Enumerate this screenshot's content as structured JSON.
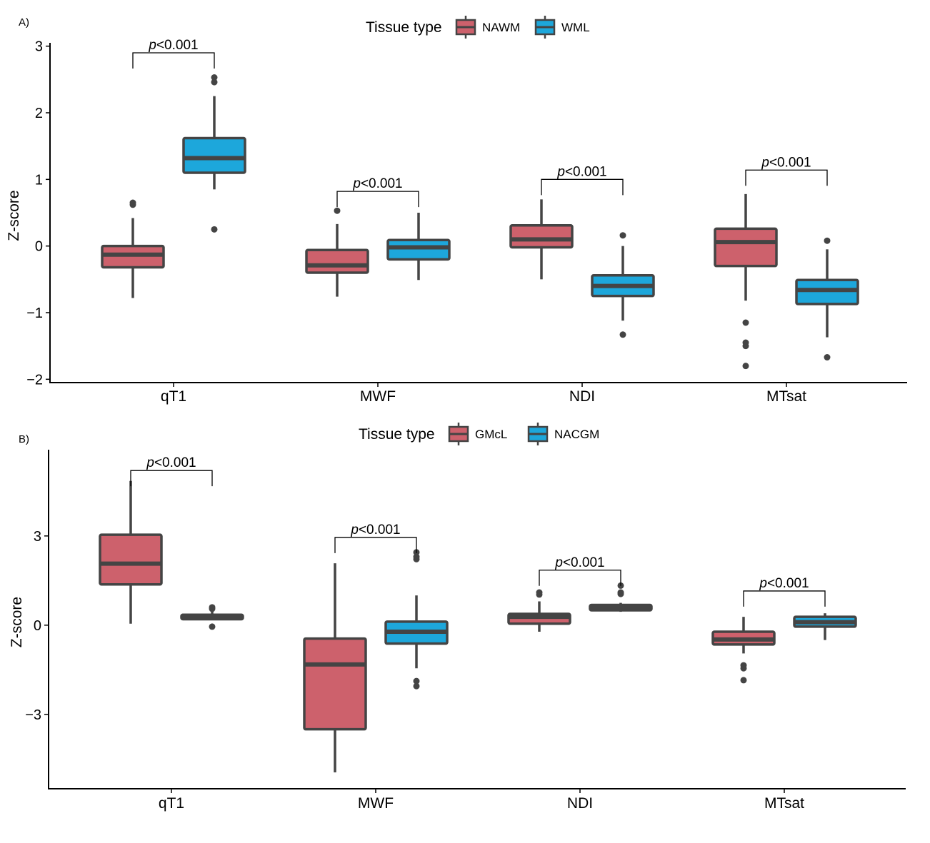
{
  "colors": {
    "box_a": "#CD616C",
    "box_b": "#1DA7DB",
    "box_stroke": "#444444"
  },
  "chart_data": [
    {
      "type": "box",
      "panel_label": "A)",
      "ylabel": "Z-score",
      "ylim": [
        -2.05,
        3.05
      ],
      "yticks": [
        3,
        2,
        1,
        0,
        -1,
        -2
      ],
      "ytick_labels": [
        "3",
        "2",
        "1",
        "0",
        "−1",
        "−2"
      ],
      "categories": [
        "qT1",
        "MWF",
        "NDI",
        "MTsat"
      ],
      "legend": {
        "title": "Tissue type",
        "entries": [
          "NAWM",
          "WML"
        ]
      },
      "annotation_prefix": "p",
      "annotation_suffix": "<0.001",
      "series": [
        {
          "name": "NAWM",
          "boxes": [
            {
              "min": -0.78,
              "q1": -0.32,
              "median": -0.13,
              "q3": 0.0,
              "max": 0.42,
              "outliers": [
                0.62,
                0.65
              ]
            },
            {
              "min": -0.76,
              "q1": -0.4,
              "median": -0.29,
              "q3": -0.06,
              "max": 0.33,
              "outliers": [
                0.53
              ]
            },
            {
              "min": -0.5,
              "q1": -0.02,
              "median": 0.1,
              "q3": 0.31,
              "max": 0.7,
              "outliers": []
            },
            {
              "min": -0.82,
              "q1": -0.3,
              "median": 0.06,
              "q3": 0.26,
              "max": 0.78,
              "outliers": [
                -1.15,
                -1.45,
                -1.5,
                -1.8
              ]
            }
          ]
        },
        {
          "name": "WML",
          "boxes": [
            {
              "min": 0.85,
              "q1": 1.1,
              "median": 1.32,
              "q3": 1.62,
              "max": 2.25,
              "outliers": [
                2.46,
                2.53,
                0.25
              ]
            },
            {
              "min": -0.51,
              "q1": -0.2,
              "median": -0.02,
              "q3": 0.09,
              "max": 0.5,
              "outliers": []
            },
            {
              "min": -1.12,
              "q1": -0.75,
              "median": -0.6,
              "q3": -0.44,
              "max": 0.0,
              "outliers": [
                0.16,
                -1.33
              ]
            },
            {
              "min": -1.37,
              "q1": -0.87,
              "median": -0.66,
              "q3": -0.51,
              "max": -0.05,
              "outliers": [
                0.08,
                -1.67
              ]
            }
          ]
        }
      ],
      "annotations": [
        {
          "category": "qT1",
          "y": 2.9
        },
        {
          "category": "MWF",
          "y": 0.82
        },
        {
          "category": "NDI",
          "y": 1.0
        },
        {
          "category": "MTsat",
          "y": 1.14
        }
      ]
    },
    {
      "type": "box",
      "panel_label": "B)",
      "ylabel": "Z-score",
      "ylim": [
        -5.5,
        5.9
      ],
      "yticks": [
        3,
        0,
        -3
      ],
      "ytick_labels": [
        "3",
        "0",
        "−3"
      ],
      "categories": [
        "qT1",
        "MWF",
        "NDI",
        "MTsat"
      ],
      "legend": {
        "title": "Tissue type",
        "entries": [
          "GMcL",
          "NACGM"
        ]
      },
      "annotation_prefix": "p",
      "annotation_suffix": "<0.001",
      "series": [
        {
          "name": "GMcL",
          "boxes": [
            {
              "min": 0.05,
              "q1": 1.37,
              "median": 2.07,
              "q3": 3.04,
              "max": 4.85,
              "outliers": []
            },
            {
              "min": -4.95,
              "q1": -3.5,
              "median": -1.32,
              "q3": -0.45,
              "max": 2.08,
              "outliers": []
            },
            {
              "min": -0.22,
              "q1": 0.05,
              "median": 0.28,
              "q3": 0.38,
              "max": 0.8,
              "outliers": [
                1.03,
                1.1
              ]
            },
            {
              "min": -0.95,
              "q1": -0.65,
              "median": -0.48,
              "q3": -0.22,
              "max": 0.28,
              "outliers": [
                -1.35,
                -1.45,
                -1.85
              ]
            }
          ]
        },
        {
          "name": "NACGM",
          "boxes": [
            {
              "min": 0.18,
              "q1": 0.2,
              "median": 0.28,
              "q3": 0.35,
              "max": 0.45,
              "outliers": [
                0.55,
                0.6,
                -0.05
              ]
            },
            {
              "min": -1.45,
              "q1": -0.62,
              "median": -0.22,
              "q3": 0.12,
              "max": 1.0,
              "outliers": [
                2.22,
                2.3,
                2.45,
                -1.88,
                -2.05
              ]
            },
            {
              "min": 0.45,
              "q1": 0.5,
              "median": 0.6,
              "q3": 0.68,
              "max": 0.75,
              "outliers": [
                1.05,
                1.1,
                1.33
              ]
            },
            {
              "min": -0.5,
              "q1": -0.05,
              "median": 0.1,
              "q3": 0.28,
              "max": 0.4,
              "outliers": []
            }
          ]
        }
      ],
      "annotations": [
        {
          "category": "qT1",
          "y": 5.2
        },
        {
          "category": "MWF",
          "y": 2.95
        },
        {
          "category": "NDI",
          "y": 1.85
        },
        {
          "category": "MTsat",
          "y": 1.15
        }
      ]
    }
  ]
}
